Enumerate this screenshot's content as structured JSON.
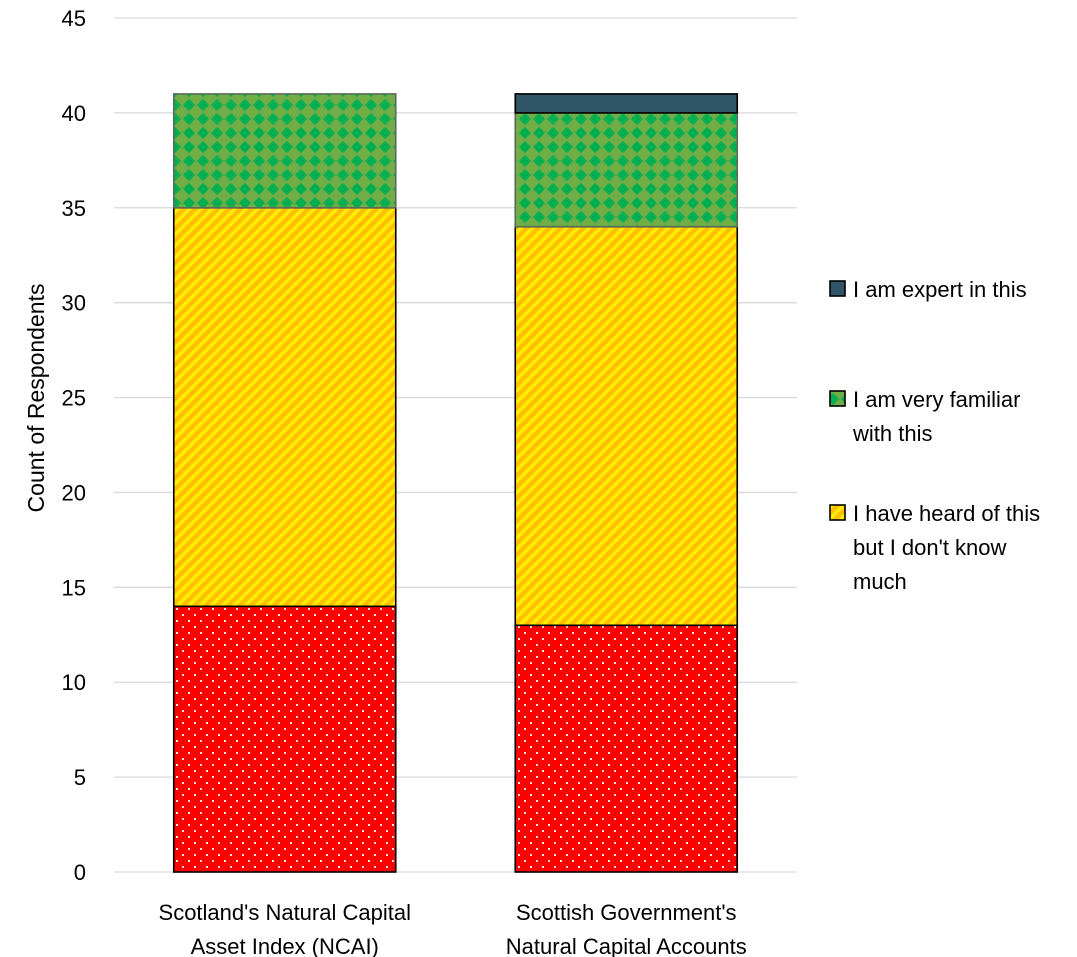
{
  "chart_data": {
    "type": "bar",
    "stacked": true,
    "categories": [
      [
        "Scotland's Natural Capital",
        "Asset Index (NCAI)"
      ],
      [
        "Scottish Government's",
        "Natural Capital Accounts"
      ]
    ],
    "series": [
      {
        "key": "red",
        "values": [
          14,
          13
        ],
        "color": "#ff0000",
        "pattern": "dots"
      },
      {
        "name": "I have heard of this but I don't know much",
        "legend_lines": [
          "I have heard of this",
          "but I don't know",
          "much"
        ],
        "values": [
          21,
          21
        ],
        "color": "#ffc000",
        "pattern": "diagonal-stripes"
      },
      {
        "name": "I am very familiar with this",
        "legend_lines": [
          "I am very familiar",
          "with this"
        ],
        "values": [
          6,
          6
        ],
        "color": "#70ad47",
        "pattern": "diamond-check"
      },
      {
        "name": "I am expert in this",
        "legend_lines": [
          "I am expert in this"
        ],
        "values": [
          0,
          1
        ],
        "color": "#2f5566",
        "pattern": "solid"
      }
    ],
    "legend_order": [
      3,
      2,
      1
    ],
    "ylabel": "Count of Respondents",
    "ylim": [
      0,
      45
    ],
    "yticks": [
      0,
      5,
      10,
      15,
      20,
      25,
      30,
      35,
      40,
      45
    ],
    "grid": true,
    "legend_position": "right"
  }
}
